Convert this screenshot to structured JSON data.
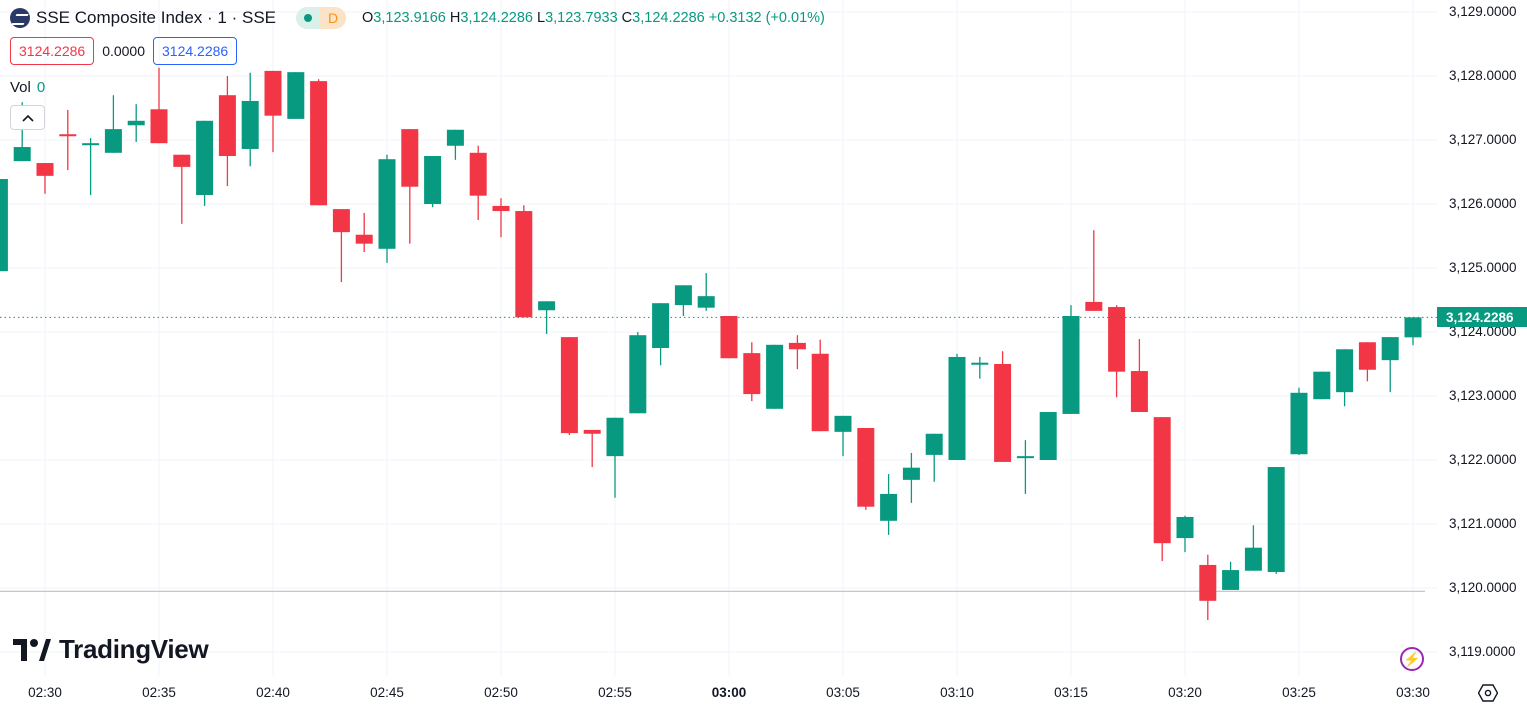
{
  "header": {
    "symbol": "SSE Composite Index · 1 · SSE",
    "market_status_letter": "D",
    "ohlc": {
      "o_label": "O",
      "o": "3,123.9166",
      "h_label": "H",
      "h": "3,124.2286",
      "l_label": "L",
      "l": "3,123.7933",
      "c_label": "C",
      "c": "3,124.2286",
      "change": "+0.3132 (+0.01%)"
    }
  },
  "order_boxes": {
    "sell": "3124.2286",
    "spread": "0.0000",
    "buy": "3124.2286"
  },
  "volume": {
    "label": "Vol",
    "value": "0"
  },
  "logo_text": "TradingView",
  "current_price_label": "3,124.2286",
  "colors": {
    "up": "#089981",
    "down": "#f23645",
    "sell": "#f23645",
    "buy": "#2962ff",
    "lightning": "#9c27b0"
  },
  "icons": [
    "collapse-chevron-up-icon",
    "lightning-icon",
    "settings-hexagon-icon",
    "exchange-logo-icon"
  ],
  "chart_data": {
    "type": "candlestick",
    "interval": "1 minute",
    "ylim": [
      3118.8,
      3129.15
    ],
    "y_ticks": [
      "3,119.0000",
      "3,120.0000",
      "3,121.0000",
      "3,122.0000",
      "3,123.0000",
      "3,124.0000",
      "3,125.0000",
      "3,126.0000",
      "3,127.0000",
      "3,128.0000",
      "3,129.0000"
    ],
    "y_tick_values": [
      3119,
      3120,
      3121,
      3122,
      3123,
      3124,
      3125,
      3126,
      3127,
      3128,
      3129
    ],
    "x_ticks": [
      "02:30",
      "02:35",
      "02:40",
      "02:45",
      "02:50",
      "02:55",
      "03:00",
      "03:05",
      "03:10",
      "03:15",
      "03:20",
      "03:25",
      "03:30"
    ],
    "x_tick_bold": "03:00",
    "grid": true,
    "last_price": 3124.2286,
    "reference_line": 3119.95,
    "fields": [
      "time",
      "open",
      "high",
      "low",
      "close"
    ],
    "candles": [
      [
        "02:28",
        3124.95,
        3126.39,
        3124.95,
        3126.39
      ],
      [
        "02:29",
        3126.67,
        3127.59,
        3126.67,
        3126.89
      ],
      [
        "02:30",
        3126.64,
        3126.64,
        3126.16,
        3126.44
      ],
      [
        "02:31",
        3127.09,
        3127.47,
        3126.53,
        3127.07
      ],
      [
        "02:32",
        3126.92,
        3127.03,
        3126.14,
        3126.95
      ],
      [
        "02:33",
        3126.8,
        3127.7,
        3126.8,
        3127.17
      ],
      [
        "02:34",
        3127.23,
        3127.56,
        3126.97,
        3127.3
      ],
      [
        "02:35",
        3127.48,
        3128.13,
        3126.95,
        3126.95
      ],
      [
        "02:36",
        3126.77,
        3126.77,
        3125.69,
        3126.58
      ],
      [
        "02:37",
        3126.14,
        3127.3,
        3125.97,
        3127.3
      ],
      [
        "02:38",
        3127.7,
        3128.0,
        3126.28,
        3126.75
      ],
      [
        "02:39",
        3126.86,
        3128.05,
        3126.59,
        3127.61
      ],
      [
        "02:40",
        3128.08,
        3128.08,
        3126.81,
        3127.38
      ],
      [
        "02:41",
        3127.33,
        3128.06,
        3127.33,
        3128.06
      ],
      [
        "02:42",
        3127.92,
        3127.95,
        3125.98,
        3125.98
      ],
      [
        "02:43",
        3125.92,
        3125.92,
        3124.78,
        3125.56
      ],
      [
        "02:44",
        3125.52,
        3125.86,
        3125.25,
        3125.38
      ],
      [
        "02:45",
        3125.3,
        3126.77,
        3125.08,
        3126.7
      ],
      [
        "02:46",
        3127.17,
        3127.17,
        3125.38,
        3126.27
      ],
      [
        "02:47",
        3126.0,
        3126.75,
        3125.95,
        3126.75
      ],
      [
        "02:48",
        3126.91,
        3127.16,
        3126.69,
        3127.16
      ],
      [
        "02:49",
        3126.8,
        3126.91,
        3125.75,
        3126.13
      ],
      [
        "02:50",
        3125.97,
        3126.09,
        3125.48,
        3125.89
      ],
      [
        "02:51",
        3125.89,
        3125.98,
        3124.23,
        3124.23
      ],
      [
        "02:52",
        3124.34,
        3124.48,
        3123.97,
        3124.48
      ],
      [
        "02:53",
        3123.92,
        3123.92,
        3122.39,
        3122.42
      ],
      [
        "02:54",
        3122.47,
        3122.47,
        3121.89,
        3122.41
      ],
      [
        "02:55",
        3122.06,
        3122.66,
        3121.41,
        3122.66
      ],
      [
        "02:56",
        3122.73,
        3124.0,
        3122.73,
        3123.95
      ],
      [
        "02:57",
        3123.75,
        3124.45,
        3123.48,
        3124.45
      ],
      [
        "02:58",
        3124.42,
        3124.73,
        3124.25,
        3124.73
      ],
      [
        "02:59",
        3124.38,
        3124.92,
        3124.33,
        3124.56
      ],
      [
        "03:00",
        3124.25,
        3124.25,
        3123.59,
        3123.59
      ],
      [
        "03:01",
        3123.67,
        3123.84,
        3122.92,
        3123.03
      ],
      [
        "03:02",
        3122.8,
        3123.8,
        3122.8,
        3123.8
      ],
      [
        "03:03",
        3123.83,
        3123.95,
        3123.42,
        3123.73
      ],
      [
        "03:04",
        3123.66,
        3123.88,
        3122.45,
        3122.45
      ],
      [
        "03:05",
        3122.44,
        3122.69,
        3122.06,
        3122.69
      ],
      [
        "03:06",
        3122.5,
        3122.5,
        3121.22,
        3121.27
      ],
      [
        "03:07",
        3121.05,
        3121.78,
        3120.83,
        3121.47
      ],
      [
        "03:08",
        3121.69,
        3122.11,
        3121.33,
        3121.88
      ],
      [
        "03:09",
        3122.08,
        3122.41,
        3121.66,
        3122.41
      ],
      [
        "03:10",
        3122.0,
        3123.66,
        3122.0,
        3123.61
      ],
      [
        "03:11",
        3123.5,
        3123.61,
        3123.27,
        3123.52
      ],
      [
        "03:12",
        3123.5,
        3123.7,
        3121.97,
        3121.97
      ],
      [
        "03:13",
        3122.05,
        3122.31,
        3121.47,
        3122.06
      ],
      [
        "03:14",
        3122.0,
        3122.75,
        3122.0,
        3122.75
      ],
      [
        "03:15",
        3122.72,
        3124.42,
        3122.72,
        3124.25
      ],
      [
        "03:16",
        3124.47,
        3125.59,
        3124.33,
        3124.33
      ],
      [
        "03:17",
        3124.39,
        3124.42,
        3122.98,
        3123.38
      ],
      [
        "03:18",
        3123.39,
        3123.89,
        3122.75,
        3122.75
      ],
      [
        "03:19",
        3122.67,
        3122.67,
        3120.42,
        3120.7
      ],
      [
        "03:20",
        3120.78,
        3121.13,
        3120.56,
        3121.11
      ],
      [
        "03:21",
        3120.36,
        3120.52,
        3119.5,
        3119.8
      ],
      [
        "03:22",
        3119.97,
        3120.41,
        3119.97,
        3120.28
      ],
      [
        "03:23",
        3120.27,
        3120.98,
        3120.27,
        3120.63
      ],
      [
        "03:24",
        3120.25,
        3121.89,
        3120.22,
        3121.89
      ],
      [
        "03:25",
        3122.09,
        3123.13,
        3122.08,
        3123.05
      ],
      [
        "03:26",
        3122.95,
        3123.38,
        3122.95,
        3123.38
      ],
      [
        "03:27",
        3123.06,
        3123.73,
        3122.84,
        3123.73
      ],
      [
        "03:28",
        3123.84,
        3123.84,
        3123.23,
        3123.41
      ],
      [
        "03:29",
        3123.56,
        3123.92,
        3123.06,
        3123.92
      ],
      [
        "03:30",
        3123.9166,
        3124.2286,
        3123.7933,
        3124.2286
      ]
    ]
  }
}
